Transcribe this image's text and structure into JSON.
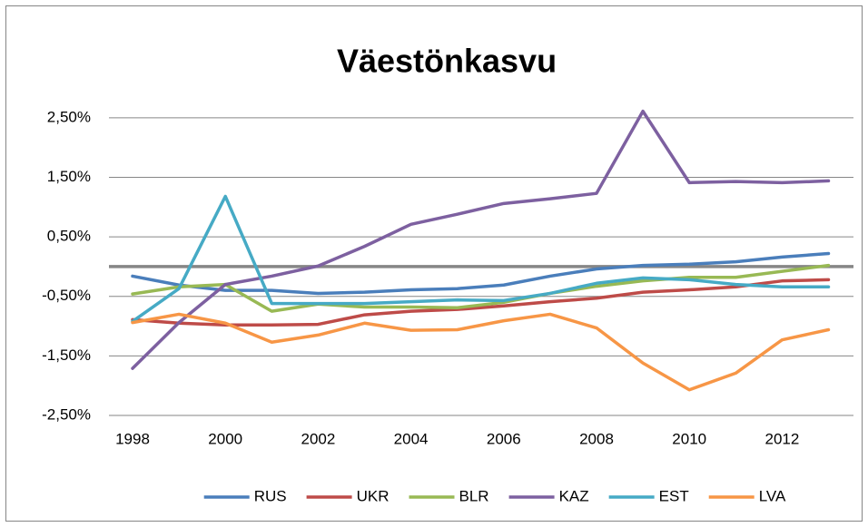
{
  "chart_data": {
    "type": "line",
    "title": "Väestönkasvu",
    "categories": [
      "1998",
      null,
      "2000",
      null,
      "2002",
      null,
      "2004",
      null,
      "2006",
      null,
      "2008",
      null,
      "2010",
      null,
      "2012",
      null
    ],
    "ylim": [
      -2.5,
      2.65
    ],
    "yticks": [
      {
        "value": -2.5,
        "label": "-2,50%"
      },
      {
        "value": -1.5,
        "label": "-1,50%"
      },
      {
        "value": -0.5,
        "label": "-0,50%"
      },
      {
        "value": 0.5,
        "label": "0,50%"
      },
      {
        "value": 1.5,
        "label": "1,50%"
      },
      {
        "value": 2.5,
        "label": "2,50%"
      }
    ],
    "grid": true,
    "legend": "bottom",
    "series": [
      {
        "name": "RUS",
        "color": "#4a7ebb",
        "values": [
          -0.16,
          -0.31,
          -0.4,
          -0.4,
          -0.45,
          -0.43,
          -0.39,
          -0.37,
          -0.31,
          -0.16,
          -0.04,
          0.02,
          0.04,
          0.08,
          0.16,
          0.22
        ]
      },
      {
        "name": "UKR",
        "color": "#be4b48",
        "values": [
          -0.89,
          -0.95,
          -0.98,
          -0.98,
          -0.97,
          -0.81,
          -0.75,
          -0.72,
          -0.66,
          -0.59,
          -0.53,
          -0.43,
          -0.39,
          -0.34,
          -0.24,
          -0.22
        ]
      },
      {
        "name": "BLR",
        "color": "#98b954",
        "values": [
          -0.46,
          -0.34,
          -0.3,
          -0.75,
          -0.63,
          -0.68,
          -0.68,
          -0.69,
          -0.6,
          -0.45,
          -0.33,
          -0.24,
          -0.18,
          -0.18,
          -0.08,
          0.02
        ]
      },
      {
        "name": "KAZ",
        "color": "#7d60a0",
        "values": [
          -1.71,
          -0.94,
          -0.3,
          -0.16,
          0.01,
          0.34,
          0.71,
          0.88,
          1.06,
          1.14,
          1.23,
          2.61,
          1.41,
          1.43,
          1.41,
          1.44
        ]
      },
      {
        "name": "EST",
        "color": "#46aac5",
        "values": [
          -0.92,
          -0.37,
          1.18,
          -0.62,
          -0.62,
          -0.62,
          -0.59,
          -0.56,
          -0.57,
          -0.45,
          -0.28,
          -0.19,
          -0.22,
          -0.3,
          -0.34,
          -0.34
        ]
      },
      {
        "name": "LVA",
        "color": "#f79646",
        "values": [
          -0.94,
          -0.8,
          -0.95,
          -1.27,
          -1.15,
          -0.95,
          -1.07,
          -1.06,
          -0.91,
          -0.8,
          -1.03,
          -1.62,
          -2.07,
          -1.79,
          -1.23,
          -1.06
        ]
      }
    ]
  }
}
